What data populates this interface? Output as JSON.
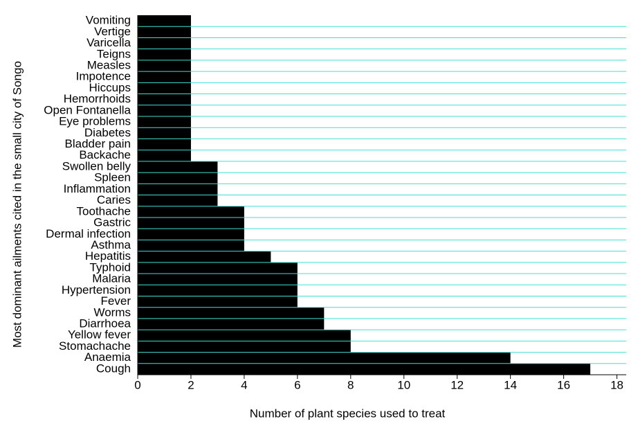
{
  "chart_data": {
    "type": "barh",
    "y_label": "Most dominant ailments cited in the small city of Songo",
    "x_label": "Number of plant species used to treat",
    "categories": [
      "Vomiting",
      "Vertige",
      "Varicella",
      "Teigns",
      "Measles",
      "Impotence",
      "Hiccups",
      "Hemorrhoids",
      "Open Fontanella",
      "Eye problems",
      "Diabetes",
      "Bladder pain",
      "Backache",
      "Swollen belly",
      "Spleen",
      "Inflammation",
      "Caries",
      "Toothache",
      "Gastric",
      "Dermal infection",
      "Asthma",
      "Hepatitis",
      "Typhoid",
      "Malaria",
      "Hypertension",
      "Fever",
      "Worms",
      "Diarrhoea",
      "Yellow fever",
      "Stomachache",
      "Anaemia",
      "Cough"
    ],
    "values": [
      2,
      2,
      2,
      2,
      2,
      2,
      2,
      2,
      2,
      2,
      2,
      2,
      2,
      3,
      3,
      3,
      3,
      4,
      4,
      4,
      4,
      5,
      6,
      6,
      6,
      6,
      7,
      7,
      8,
      8,
      14,
      17
    ],
    "color": "#000000",
    "separator_color": "#40e0d0",
    "xlim": [
      0,
      18.35
    ],
    "xticks": [
      0,
      2,
      4,
      6,
      8,
      10,
      12,
      14,
      16,
      18
    ]
  }
}
